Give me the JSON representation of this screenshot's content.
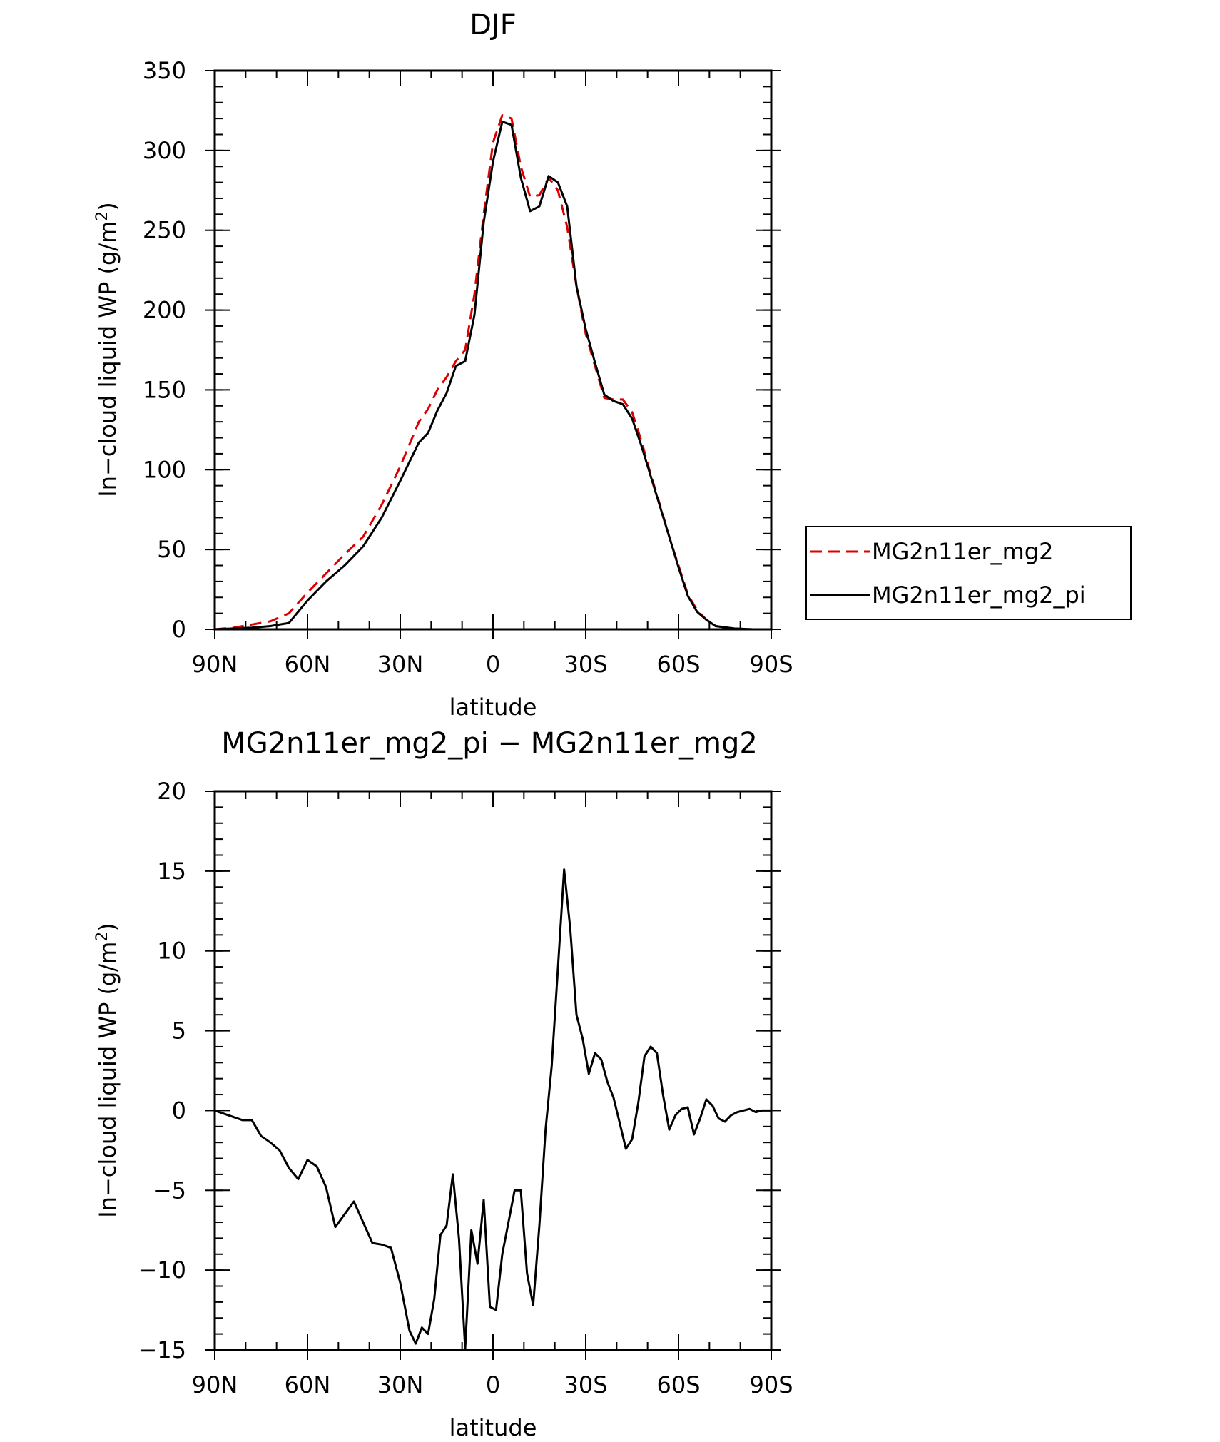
{
  "chart_data": [
    {
      "type": "line",
      "title": "DJF",
      "xlabel": "latitude",
      "ylabel_prefix": "In−cloud liquid WP (g/m",
      "ylabel_exp": "2",
      "ylabel_suffix": ")",
      "xlim": [
        90,
        -90
      ],
      "ylim": [
        0,
        350
      ],
      "xticks": [
        90,
        60,
        30,
        0,
        -30,
        -60,
        -90
      ],
      "xtick_labels": [
        "90N",
        "60N",
        "30N",
        "0",
        "30S",
        "60S",
        "90S"
      ],
      "yticks": [
        0,
        50,
        100,
        150,
        200,
        250,
        300,
        350
      ],
      "ytick_labels": [
        "0",
        "50",
        "100",
        "150",
        "200",
        "250",
        "300",
        "350"
      ],
      "legend": {
        "placement": "right"
      },
      "x": [
        90,
        84,
        78,
        72,
        66,
        60,
        54,
        48,
        42,
        36,
        30,
        24,
        21,
        18,
        15,
        12,
        9,
        6,
        3,
        0,
        -3,
        -6,
        -9,
        -12,
        -15,
        -18,
        -21,
        -24,
        -27,
        -30,
        -33,
        -36,
        -39,
        -42,
        -45,
        -48,
        -51,
        -54,
        -57,
        -60,
        -63,
        -66,
        -69,
        -72,
        -78,
        -84,
        -90
      ],
      "series": [
        {
          "name": "MG2n11er_mg2",
          "color": "#dd0000",
          "dash": "dashed",
          "values": [
            0,
            1,
            3,
            5,
            10,
            23,
            35,
            47,
            58,
            78,
            102,
            130,
            138,
            150,
            158,
            168,
            175,
            210,
            260,
            305,
            322,
            320,
            290,
            271,
            272,
            283,
            275,
            252,
            215,
            185,
            165,
            145,
            144,
            144,
            136,
            118,
            97,
            78,
            58,
            40,
            22,
            12,
            6,
            2,
            0.5,
            0,
            0
          ]
        },
        {
          "name": "MG2n11er_mg2_pi",
          "color": "#000000",
          "dash": "solid",
          "values": [
            0,
            0.5,
            1,
            2,
            4,
            18,
            30,
            40,
            52,
            70,
            93,
            117,
            123,
            137,
            148,
            165,
            168,
            197,
            255,
            293,
            318,
            316,
            283,
            262,
            265,
            284,
            280,
            265,
            215,
            188,
            167,
            147,
            143,
            141,
            132,
            115,
            96,
            77,
            58,
            39,
            21,
            11,
            6,
            2,
            0.5,
            0,
            0
          ]
        }
      ]
    },
    {
      "type": "line",
      "title": "MG2n11er_mg2_pi − MG2n11er_mg2",
      "xlabel": "latitude",
      "ylabel_prefix": "In−cloud liquid WP (g/m",
      "ylabel_exp": "2",
      "ylabel_suffix": ")",
      "xlim": [
        90,
        -90
      ],
      "ylim": [
        -15,
        20
      ],
      "xticks": [
        90,
        60,
        30,
        0,
        -30,
        -60,
        -90
      ],
      "xtick_labels": [
        "90N",
        "60N",
        "30N",
        "0",
        "30S",
        "60S",
        "90S"
      ],
      "yticks": [
        -15,
        -10,
        -5,
        0,
        5,
        10,
        15,
        20
      ],
      "ytick_labels": [
        "−15",
        "−10",
        "−5",
        "0",
        "5",
        "10",
        "15",
        "20"
      ],
      "x": [
        90,
        87,
        84,
        81,
        78,
        75,
        72,
        69,
        66,
        63,
        60,
        57,
        54,
        51,
        48,
        45,
        42,
        39,
        36,
        33,
        30,
        27,
        25,
        23,
        21,
        19,
        17,
        15,
        13,
        11,
        9,
        7,
        5,
        3,
        1,
        -1,
        -3,
        -5,
        -7,
        -9,
        -11,
        -13,
        -15,
        -17,
        -19,
        -21,
        -23,
        -25,
        -27,
        -29,
        -31,
        -33,
        -35,
        -37,
        -39,
        -41,
        -43,
        -45,
        -47,
        -49,
        -51,
        -53,
        -55,
        -57,
        -59,
        -61,
        -63,
        -65,
        -67,
        -69,
        -71,
        -73,
        -75,
        -77,
        -79,
        -81,
        -83,
        -85,
        -87,
        -90
      ],
      "series": [
        {
          "name": "",
          "color": "#000000",
          "dash": "solid",
          "values": [
            0,
            -0.2,
            -0.4,
            -0.6,
            -0.6,
            -1.6,
            -2.0,
            -2.5,
            -3.6,
            -4.3,
            -3.1,
            -3.5,
            -4.8,
            -7.3,
            -6.5,
            -5.7,
            -7.0,
            -8.3,
            -8.4,
            -8.6,
            -10.8,
            -13.8,
            -14.6,
            -13.6,
            -14.0,
            -11.8,
            -7.8,
            -7.2,
            -4.0,
            -8.0,
            -14.9,
            -7.5,
            -9.6,
            -5.6,
            -12.3,
            -12.5,
            -9.0,
            -7.0,
            -5.0,
            -5.0,
            -10.2,
            -12.2,
            -7.2,
            -1.2,
            2.8,
            8.9,
            15.1,
            11.4,
            6.0,
            4.5,
            2.3,
            3.6,
            3.2,
            1.8,
            0.8,
            -0.8,
            -2.4,
            -1.8,
            0.5,
            3.4,
            4.0,
            3.6,
            1.0,
            -1.2,
            -0.3,
            0.1,
            0.2,
            -1.5,
            -0.5,
            0.7,
            0.3,
            -0.5,
            -0.7,
            -0.3,
            -0.1,
            0.0,
            0.1,
            -0.1,
            0.0,
            0.0
          ]
        }
      ]
    }
  ]
}
